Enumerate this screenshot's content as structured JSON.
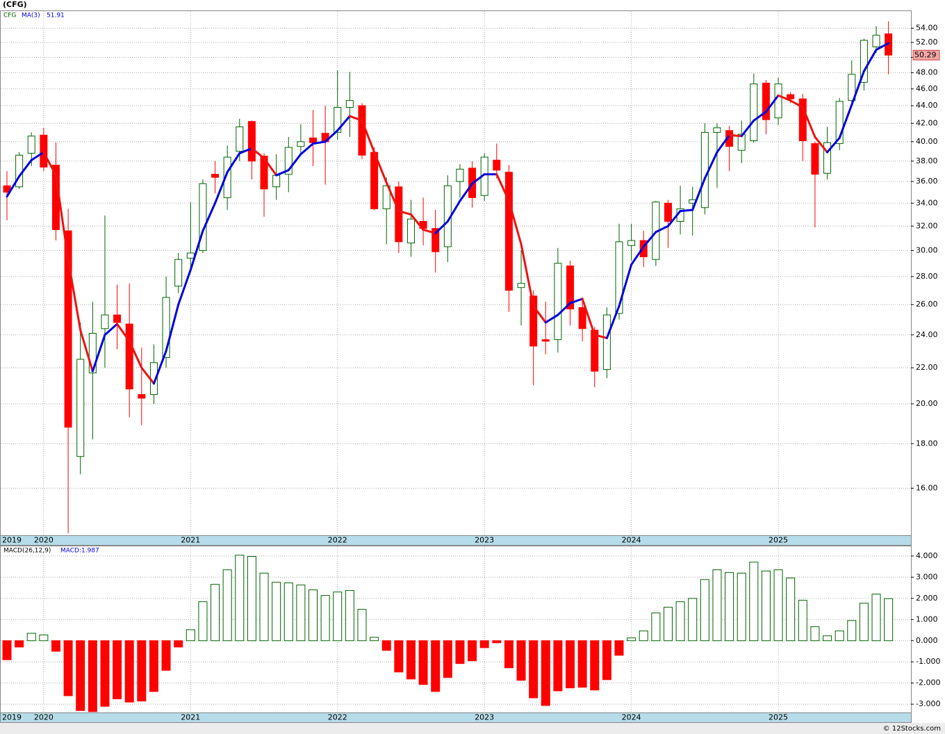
{
  "chart_data": [
    {
      "type": "candlestick",
      "title": "(CFG)",
      "symbol": "CFG",
      "categories": [
        "2019",
        null,
        null,
        "2020",
        null,
        null,
        null,
        null,
        null,
        null,
        null,
        null,
        null,
        null,
        null,
        "2021",
        null,
        null,
        null,
        null,
        null,
        null,
        null,
        null,
        null,
        null,
        null,
        "2022",
        null,
        null,
        null,
        null,
        null,
        null,
        null,
        null,
        null,
        null,
        null,
        "2023",
        null,
        null,
        null,
        null,
        null,
        null,
        null,
        null,
        null,
        null,
        null,
        "2024",
        null,
        null,
        null,
        null,
        null,
        null,
        null,
        null,
        null,
        null,
        null,
        "2025",
        null,
        null,
        null,
        null,
        null,
        null,
        null,
        null,
        null
      ],
      "open": [
        35.6,
        35.5,
        38.8,
        40.7,
        37.6,
        31.6,
        17.4,
        21.7,
        24.4,
        25.3,
        24.7,
        20.5,
        20.5,
        22.6,
        27.3,
        29.4,
        30.0,
        36.7,
        34.5,
        39.0,
        42.2,
        38.5,
        35.5,
        36.7,
        39.5,
        40.4,
        40.9,
        41.0,
        43.8,
        44.0,
        38.9,
        33.5,
        35.5,
        30.6,
        32.4,
        31.8,
        30.3,
        36.0,
        37.3,
        34.7,
        38.1,
        36.9,
        27.2,
        26.6,
        23.7,
        23.7,
        28.8,
        25.8,
        24.3,
        21.9,
        25.4,
        30.4,
        30.8,
        29.3,
        34.0,
        32.4,
        34.0,
        33.6,
        41.0,
        41.2,
        39.1,
        40.1,
        46.7,
        42.6,
        45.3,
        44.8,
        39.8,
        36.8,
        39.8,
        44.6,
        46.8,
        51.4,
        53.2
      ],
      "high": [
        37,
        38.9,
        41.0,
        41.5,
        39.9,
        33.5,
        24.8,
        26.2,
        32.9,
        27.4,
        27.5,
        23.2,
        23.4,
        28.0,
        29.8,
        34.1,
        36.2,
        38.0,
        39.6,
        42.5,
        42.3,
        38.8,
        38.7,
        40.5,
        41.9,
        43.5,
        44.0,
        48.3,
        48.1,
        44.3,
        39.4,
        36.4,
        36.0,
        34.3,
        34.5,
        33.4,
        36.6,
        37.7,
        38.0,
        38.8,
        39.8,
        37.6,
        30.0,
        27.0,
        26.2,
        30.2,
        29.2,
        26.5,
        24.5,
        25.8,
        32.2,
        32.2,
        31.6,
        34.2,
        34.3,
        35.6,
        35.5,
        42.0,
        42.0,
        41.7,
        42.3,
        47.9,
        47.1,
        47.4,
        45.6,
        45.4,
        40.0,
        41.6,
        44.9,
        49.6,
        52.5,
        54.3,
        55.0
      ],
      "low": [
        32.5,
        35.3,
        37.5,
        37.0,
        30.8,
        14.2,
        16.6,
        18.2,
        22.0,
        23.1,
        19.3,
        18.9,
        20.0,
        22.0,
        26.8,
        28.6,
        29.8,
        34.9,
        33.4,
        38.0,
        36.2,
        32.8,
        34.3,
        35.0,
        38.8,
        37.5,
        35.7,
        40.2,
        40.5,
        38.2,
        33.4,
        30.5,
        29.8,
        29.5,
        30.4,
        28.3,
        29.1,
        34.5,
        33.6,
        34.2,
        36.3,
        25.5,
        24.6,
        21.0,
        22.8,
        22.9,
        24.6,
        23.6,
        20.9,
        21.4,
        25.0,
        29.2,
        28.7,
        28.8,
        30.2,
        31.3,
        31.2,
        33.0,
        35.4,
        37.0,
        37.8,
        39.9,
        40.8,
        41.8,
        44.3,
        38.0,
        31.9,
        36.2,
        39.1,
        44.0,
        45.8,
        50.6,
        47.8
      ],
      "close": [
        35.0,
        38.6,
        40.6,
        37.4,
        31.7,
        18.8,
        22.5,
        24.1,
        25.3,
        24.8,
        20.8,
        20.3,
        22.3,
        26.5,
        29.3,
        29.8,
        35.8,
        36.4,
        38.4,
        41.6,
        38.0,
        35.3,
        36.6,
        39.4,
        40.0,
        39.9,
        40.0,
        43.8,
        44.6,
        38.6,
        33.5,
        35.6,
        30.7,
        32.6,
        31.8,
        29.9,
        35.6,
        37.2,
        34.5,
        38.4,
        37.1,
        27.0,
        27.5,
        23.3,
        23.6,
        29.0,
        25.7,
        24.4,
        21.8,
        25.3,
        30.7,
        30.8,
        29.5,
        34.1,
        32.4,
        33.5,
        34.3,
        41.0,
        41.5,
        39.5,
        40.8,
        46.6,
        42.4,
        46.6,
        44.8,
        40.1,
        36.7,
        39.9,
        44.5,
        47.8,
        52.3,
        53.0,
        50.29
      ],
      "last_label": "50.29",
      "up_color": "#006400",
      "down_color": "#ff0000",
      "ma": {
        "name": "MA(3)",
        "value_label": "51.91",
        "up_color": "#0000dd",
        "down_color": "#ee1111",
        "values": [
          34.6,
          36.5,
          38.1,
          38.9,
          36.6,
          29.3,
          24.3,
          21.8,
          24.0,
          24.7,
          23.6,
          22.0,
          21.1,
          23.0,
          26.0,
          28.5,
          31.6,
          34.0,
          36.9,
          38.8,
          39.3,
          38.3,
          36.6,
          37.1,
          38.7,
          39.8,
          40.0,
          41.2,
          42.8,
          42.3,
          38.9,
          35.9,
          33.3,
          33.0,
          31.7,
          31.4,
          32.4,
          34.2,
          35.8,
          36.7,
          36.7,
          34.2,
          30.5,
          25.9,
          24.8,
          25.3,
          26.1,
          26.4,
          24.0,
          23.8,
          25.9,
          28.9,
          30.3,
          31.5,
          32.0,
          33.3,
          33.4,
          36.3,
          38.9,
          40.7,
          40.6,
          42.3,
          43.3,
          45.2,
          44.6,
          43.8,
          40.5,
          38.9,
          40.4,
          44.1,
          48.2,
          51.0,
          51.91
        ]
      },
      "log_scale": true,
      "grid": true,
      "ylim": [
        14.13,
        56.6
      ],
      "yticks": [
        {
          "value": 16,
          "label": "16.00"
        },
        {
          "value": 18,
          "label": "18.00"
        },
        {
          "value": 20,
          "label": "20.00"
        },
        {
          "value": 22,
          "label": "22.00"
        },
        {
          "value": 24,
          "label": "24.00"
        },
        {
          "value": 26,
          "label": "26.00"
        },
        {
          "value": 28,
          "label": "28.00"
        },
        {
          "value": 30,
          "label": "30.00"
        },
        {
          "value": 32,
          "label": "32.00"
        },
        {
          "value": 34,
          "label": "34.00"
        },
        {
          "value": 36,
          "label": "36.00"
        },
        {
          "value": 38,
          "label": "38.00"
        },
        {
          "value": 40,
          "label": "40.00"
        },
        {
          "value": 42,
          "label": "42.00"
        },
        {
          "value": 44,
          "label": "44.00"
        },
        {
          "value": 46,
          "label": "46.00"
        },
        {
          "value": 48,
          "label": "48.00"
        },
        {
          "value": 50,
          "label": "50.00"
        },
        {
          "value": 52,
          "label": "52.00"
        },
        {
          "value": 54,
          "label": "54.00"
        }
      ]
    },
    {
      "type": "bar",
      "name": "MACD(26,12,9)",
      "value_label": "MACD:1.987",
      "pos_color": "#006400",
      "neg_color": "#ff0000",
      "values": [
        -0.9,
        -0.3,
        0.35,
        0.27,
        -0.5,
        -2.6,
        -3.3,
        -3.35,
        -3.1,
        -2.75,
        -2.9,
        -2.85,
        -2.4,
        -1.4,
        -0.3,
        0.52,
        1.84,
        2.66,
        3.35,
        4.04,
        3.98,
        3.19,
        2.76,
        2.73,
        2.63,
        2.4,
        2.14,
        2.3,
        2.37,
        1.48,
        0.16,
        -0.46,
        -1.48,
        -1.81,
        -2.07,
        -2.4,
        -1.74,
        -1.08,
        -0.95,
        -0.33,
        -0.1,
        -1.28,
        -1.87,
        -2.7,
        -3.06,
        -2.37,
        -2.23,
        -2.2,
        -2.33,
        -1.84,
        -0.69,
        0.13,
        0.46,
        1.31,
        1.58,
        1.84,
        2.0,
        2.89,
        3.35,
        3.22,
        3.19,
        3.71,
        3.29,
        3.35,
        2.96,
        1.91,
        0.66,
        0.23,
        0.46,
        0.95,
        1.77,
        2.2,
        1.987
      ],
      "grid": true,
      "ylim": [
        -3.39,
        4.49
      ],
      "yticks": [
        {
          "value": -3,
          "label": "-3.000"
        },
        {
          "value": -2,
          "label": "-2.000"
        },
        {
          "value": -1,
          "label": "-1.000"
        },
        {
          "value": 0,
          "label": "0.000"
        },
        {
          "value": 1,
          "label": "1.000"
        },
        {
          "value": 2,
          "label": "2.000"
        },
        {
          "value": 3,
          "label": "3.000"
        },
        {
          "value": 4,
          "label": "4.000"
        }
      ]
    }
  ],
  "footer": "© 12Stocks.com"
}
